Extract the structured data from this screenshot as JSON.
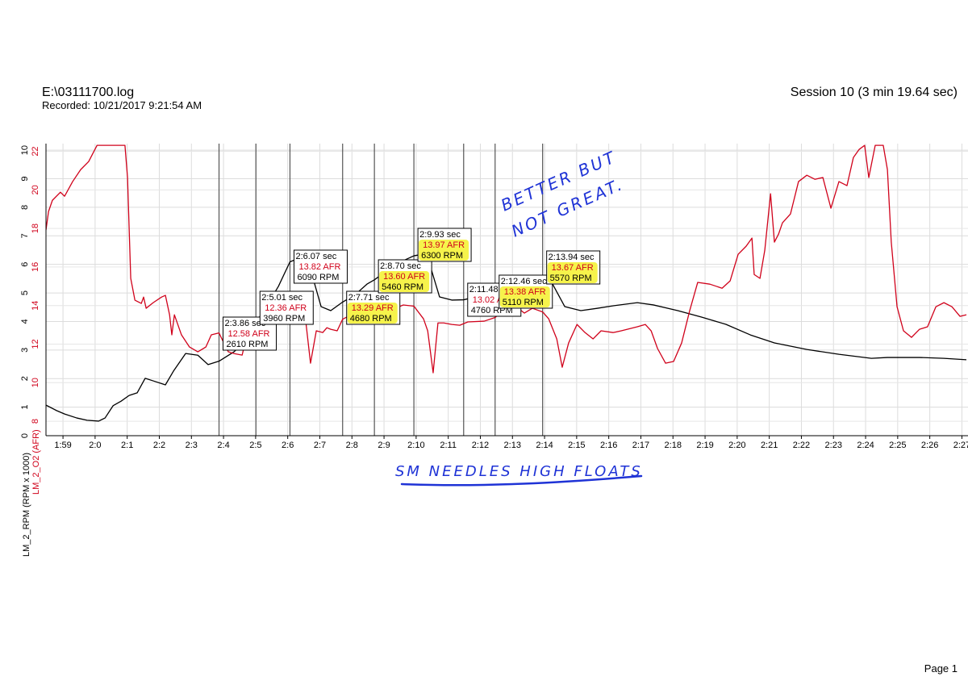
{
  "header": {
    "file": "E:\\03111700.log",
    "recorded": "Recorded: 10/21/2017 9:21:54 AM",
    "session": "Session 10 (3 min 19.64 sec)",
    "page": "Page 1"
  },
  "handwriting": {
    "note_line1": "BETTER BUT",
    "note_line2": "NOT GREAT.",
    "caption": "SM NEEDLES HIGH FLOATS"
  },
  "chart_data": {
    "type": "line",
    "grid": true,
    "xlim": [
      118.47,
      147.19
    ],
    "xticks": [
      {
        "value": 119,
        "label": "1:59"
      },
      {
        "value": 120,
        "label": "2:0"
      },
      {
        "value": 121,
        "label": "2:1"
      },
      {
        "value": 122,
        "label": "2:2"
      },
      {
        "value": 123,
        "label": "2:3"
      },
      {
        "value": 124,
        "label": "2:4"
      },
      {
        "value": 125,
        "label": "2:5"
      },
      {
        "value": 126,
        "label": "2:6"
      },
      {
        "value": 127,
        "label": "2:7"
      },
      {
        "value": 128,
        "label": "2:8"
      },
      {
        "value": 129,
        "label": "2:9"
      },
      {
        "value": 130,
        "label": "2:10"
      },
      {
        "value": 131,
        "label": "2:11"
      },
      {
        "value": 132,
        "label": "2:12"
      },
      {
        "value": 133,
        "label": "2:13"
      },
      {
        "value": 134,
        "label": "2:14"
      },
      {
        "value": 135,
        "label": "2:15"
      },
      {
        "value": 136,
        "label": "2:16"
      },
      {
        "value": 137,
        "label": "2:17"
      },
      {
        "value": 138,
        "label": "2:18"
      },
      {
        "value": 139,
        "label": "2:19"
      },
      {
        "value": 140,
        "label": "2:20"
      },
      {
        "value": 141,
        "label": "2:21"
      },
      {
        "value": 142,
        "label": "2:22"
      },
      {
        "value": 143,
        "label": "2:23"
      },
      {
        "value": 144,
        "label": "2:24"
      },
      {
        "value": 145,
        "label": "2:25"
      },
      {
        "value": 146,
        "label": "2:26"
      },
      {
        "value": 147,
        "label": "2:27"
      }
    ],
    "ylim": [
      0,
      10.23
    ],
    "yticks": [
      0,
      1,
      2,
      3,
      4,
      5,
      6,
      7,
      8,
      9,
      10
    ],
    "y2lim": [
      7.25,
      22.4
    ],
    "y2ticks": [
      8,
      10,
      12,
      14,
      16,
      18,
      20,
      22
    ],
    "series": [
      {
        "name": "LM_2_RPM (RPM x 1000)",
        "color": "#000000",
        "x": [
          118.47,
          118.8,
          119.05,
          119.43,
          119.75,
          120.11,
          120.31,
          120.56,
          120.81,
          121.06,
          121.31,
          121.56,
          121.81,
          122.19,
          122.44,
          122.82,
          123.2,
          123.52,
          123.86,
          124.33,
          124.7,
          125.01,
          125.33,
          125.71,
          126.07,
          126.34,
          126.59,
          126.79,
          127.04,
          127.34,
          127.71,
          128.1,
          128.47,
          128.7,
          129.1,
          129.48,
          129.93,
          130.23,
          130.48,
          130.73,
          131.11,
          131.48,
          131.86,
          132.24,
          132.46,
          132.87,
          133.37,
          133.94,
          134.25,
          134.63,
          135.13,
          135.63,
          136.14,
          136.89,
          137.39,
          138.15,
          138.9,
          139.65,
          140.41,
          141.16,
          142.17,
          143.17,
          144.18,
          144.68,
          145.68,
          146.44,
          147.14
        ],
        "values": [
          1.07,
          0.88,
          0.76,
          0.62,
          0.54,
          0.51,
          0.62,
          1.05,
          1.21,
          1.41,
          1.5,
          2.01,
          1.92,
          1.78,
          2.26,
          2.88,
          2.82,
          2.49,
          2.61,
          2.94,
          3.33,
          3.96,
          4.52,
          5.23,
          6.09,
          6.21,
          6.27,
          5.51,
          4.52,
          4.38,
          4.68,
          4.94,
          5.31,
          5.46,
          5.79,
          6.07,
          6.3,
          6.36,
          5.79,
          4.86,
          4.75,
          4.76,
          4.86,
          5.08,
          5.11,
          5.23,
          5.37,
          5.57,
          5.31,
          4.52,
          4.38,
          4.46,
          4.55,
          4.66,
          4.58,
          4.38,
          4.15,
          3.9,
          3.53,
          3.25,
          3.02,
          2.85,
          2.71,
          2.74,
          2.74,
          2.71,
          2.66
        ]
      },
      {
        "name": "LM_2_O2 (AFR)",
        "color": "#d0021b",
        "axis": "y2",
        "x": [
          118.47,
          118.55,
          118.67,
          118.92,
          119.05,
          119.3,
          119.55,
          119.8,
          120.06,
          120.93,
          121.01,
          121.11,
          121.24,
          121.44,
          121.51,
          121.59,
          121.81,
          122.07,
          122.19,
          122.32,
          122.39,
          122.47,
          122.69,
          122.94,
          123.2,
          123.45,
          123.62,
          123.86,
          123.95,
          124.15,
          124.33,
          124.58,
          124.7,
          125.01,
          125.21,
          125.46,
          125.71,
          125.96,
          126.07,
          126.51,
          126.71,
          126.89,
          127.09,
          127.22,
          127.34,
          127.54,
          127.71,
          127.97,
          128.22,
          128.47,
          128.72,
          128.97,
          129.35,
          129.6,
          129.93,
          130.23,
          130.36,
          130.53,
          130.68,
          130.86,
          131.11,
          131.36,
          131.61,
          132.12,
          132.46,
          132.74,
          133.12,
          133.37,
          133.62,
          133.94,
          134.13,
          134.38,
          134.55,
          134.75,
          135.01,
          135.26,
          135.51,
          135.76,
          136.14,
          136.39,
          136.89,
          137.14,
          137.32,
          137.52,
          137.77,
          138.02,
          138.27,
          138.52,
          138.77,
          139.15,
          139.53,
          139.78,
          140.03,
          140.28,
          140.46,
          140.53,
          140.71,
          140.86,
          141.04,
          141.16,
          141.29,
          141.41,
          141.66,
          141.91,
          142.17,
          142.42,
          142.67,
          142.92,
          143.17,
          143.42,
          143.62,
          143.8,
          143.97,
          144.1,
          144.3,
          144.55,
          144.68,
          144.8,
          144.98,
          145.18,
          145.43,
          145.68,
          145.93,
          146.19,
          146.44,
          146.69,
          146.94,
          147.14
        ],
        "values": [
          17.92,
          18.88,
          19.46,
          19.88,
          19.67,
          20.43,
          21.05,
          21.47,
          22.31,
          22.31,
          20.64,
          15.41,
          14.28,
          14.11,
          14.44,
          13.86,
          14.15,
          14.44,
          14.53,
          13.52,
          12.48,
          13.52,
          12.48,
          11.85,
          11.6,
          11.85,
          12.48,
          12.58,
          12.27,
          11.6,
          11.51,
          11.43,
          12.27,
          12.36,
          13.31,
          13.73,
          13.94,
          13.9,
          13.82,
          13.94,
          11.01,
          12.69,
          12.6,
          12.85,
          12.77,
          12.69,
          13.29,
          13.52,
          13.69,
          13.73,
          13.73,
          13.82,
          13.86,
          14.03,
          13.97,
          13.31,
          12.69,
          10.51,
          13.1,
          13.1,
          13.02,
          12.98,
          13.15,
          13.19,
          13.38,
          13.77,
          13.94,
          13.61,
          13.86,
          13.67,
          13.31,
          12.27,
          10.8,
          12.06,
          13.02,
          12.6,
          12.27,
          12.69,
          12.6,
          12.69,
          12.9,
          13.02,
          12.69,
          11.77,
          11.01,
          11.1,
          12.06,
          13.73,
          15.2,
          15.11,
          14.9,
          15.28,
          16.66,
          17.08,
          17.5,
          15.61,
          15.41,
          16.87,
          19.8,
          17.29,
          17.71,
          18.29,
          18.75,
          20.43,
          20.76,
          20.55,
          20.64,
          19.05,
          20.43,
          20.22,
          21.68,
          22.1,
          22.31,
          20.64,
          22.31,
          22.31,
          21.05,
          17.29,
          13.94,
          12.69,
          12.35,
          12.77,
          12.9,
          13.94,
          14.15,
          13.94,
          13.44,
          13.52
        ]
      }
    ],
    "markers": [
      {
        "x": 123.86,
        "label": "2:3.86 sec",
        "afr": 12.58,
        "afr_label": "12.58 AFR",
        "rpm": 2.61,
        "rpm_label": "2610 RPM",
        "highlighted": false
      },
      {
        "x": 125.01,
        "label": "2:5.01 sec",
        "afr": 12.36,
        "afr_label": "12.36 AFR",
        "rpm": 3.96,
        "rpm_label": "3960 RPM",
        "highlighted": false
      },
      {
        "x": 126.07,
        "label": "2:6.07 sec",
        "afr": 13.82,
        "afr_label": "13.82 AFR",
        "rpm": 6.09,
        "rpm_label": "6090 RPM",
        "highlighted": false
      },
      {
        "x": 127.71,
        "label": "2:7.71 sec",
        "afr": 13.29,
        "afr_label": "13.29 AFR",
        "rpm": 4.68,
        "rpm_label": "4680 RPM",
        "highlighted": true
      },
      {
        "x": 128.7,
        "label": "2:8.70 sec",
        "afr": 13.6,
        "afr_label": "13.60 AFR",
        "rpm": 5.46,
        "rpm_label": "5460 RPM",
        "highlighted": true
      },
      {
        "x": 129.93,
        "label": "2:9.93 sec",
        "afr": 13.97,
        "afr_label": "13.97 AFR",
        "rpm": 6.3,
        "rpm_label": "6300 RPM",
        "highlighted": true
      },
      {
        "x": 131.48,
        "label": "2:11.48 sec",
        "afr": 13.02,
        "afr_label": "13.02 AFR",
        "rpm": 4.76,
        "rpm_label": "4760 RPM",
        "highlighted": false
      },
      {
        "x": 132.46,
        "label": "2:12.46 sec",
        "afr": 13.38,
        "afr_label": "13.38 AFR",
        "rpm": 5.11,
        "rpm_label": "5110 RPM",
        "highlighted": true
      },
      {
        "x": 133.94,
        "label": "2:13.94 sec",
        "afr": 13.67,
        "afr_label": "13.67 AFR",
        "rpm": 5.57,
        "rpm_label": "5570 RPM",
        "highlighted": true
      }
    ]
  }
}
